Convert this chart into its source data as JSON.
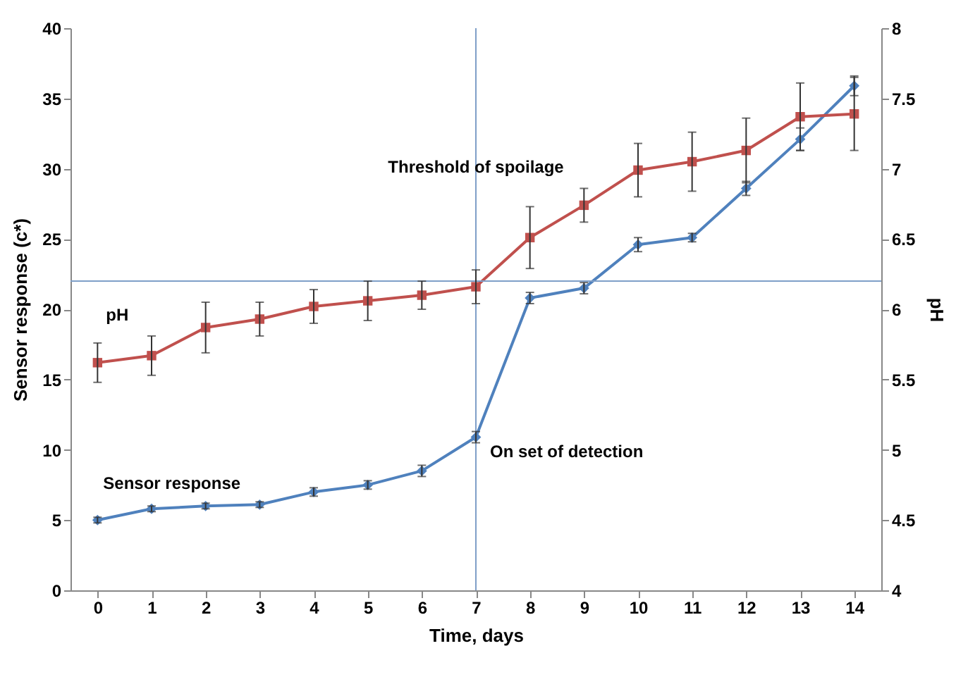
{
  "chart_data": {
    "type": "line",
    "xlabel": "Time, days",
    "ylabel": "Sensor response (c*)",
    "y2label": "pH",
    "x": [
      0,
      1,
      2,
      3,
      4,
      5,
      6,
      7,
      8,
      9,
      10,
      11,
      12,
      13,
      14
    ],
    "series": [
      {
        "name": "Sensor response",
        "color": "#4f81bd",
        "marker": "diamond",
        "values": [
          5.0,
          5.8,
          6.0,
          6.1,
          7.0,
          7.5,
          8.5,
          10.9,
          20.8,
          21.5,
          24.6,
          25.1,
          28.6,
          32.1,
          35.9
        ],
        "errors": [
          0.2,
          0.2,
          0.2,
          0.2,
          0.3,
          0.3,
          0.4,
          0.4,
          0.4,
          0.4,
          0.5,
          0.3,
          0.5,
          0.8,
          0.7
        ]
      },
      {
        "name": "pH",
        "color": "#c0504d",
        "marker": "square",
        "axis": "y2",
        "values": [
          5.62,
          5.67,
          5.87,
          5.93,
          6.02,
          6.06,
          6.1,
          6.16,
          6.51,
          6.74,
          6.99,
          7.05,
          7.13,
          7.37,
          7.39
        ],
        "errors": [
          0.14,
          0.14,
          0.18,
          0.12,
          0.12,
          0.14,
          0.1,
          0.12,
          0.22,
          0.12,
          0.19,
          0.21,
          0.23,
          0.24,
          0.26
        ]
      }
    ],
    "xlim": [
      -0.5,
      14.5
    ],
    "xticks": [
      0,
      1,
      2,
      3,
      4,
      5,
      6,
      7,
      8,
      9,
      10,
      11,
      12,
      13,
      14
    ],
    "ylim": [
      0,
      40
    ],
    "yticks": [
      0,
      5,
      10,
      15,
      20,
      25,
      30,
      35,
      40
    ],
    "y2lim": [
      4,
      8
    ],
    "y2ticks": [
      4,
      4.5,
      5,
      5.5,
      6,
      6.5,
      7,
      7.5,
      8
    ],
    "ref_lines": [
      {
        "axis": "x",
        "value": 7,
        "color": "#7f9fc8"
      },
      {
        "axis": "y2",
        "value": 6.2,
        "color": "#7f9fc8"
      }
    ],
    "annotations": [
      {
        "text": "Threshold of spoilage",
        "x": 7,
        "y": 29
      },
      {
        "text": "On set of detection",
        "x": 7,
        "y": 10.9
      }
    ],
    "grid": false,
    "legend": false,
    "line_style": "solid"
  }
}
